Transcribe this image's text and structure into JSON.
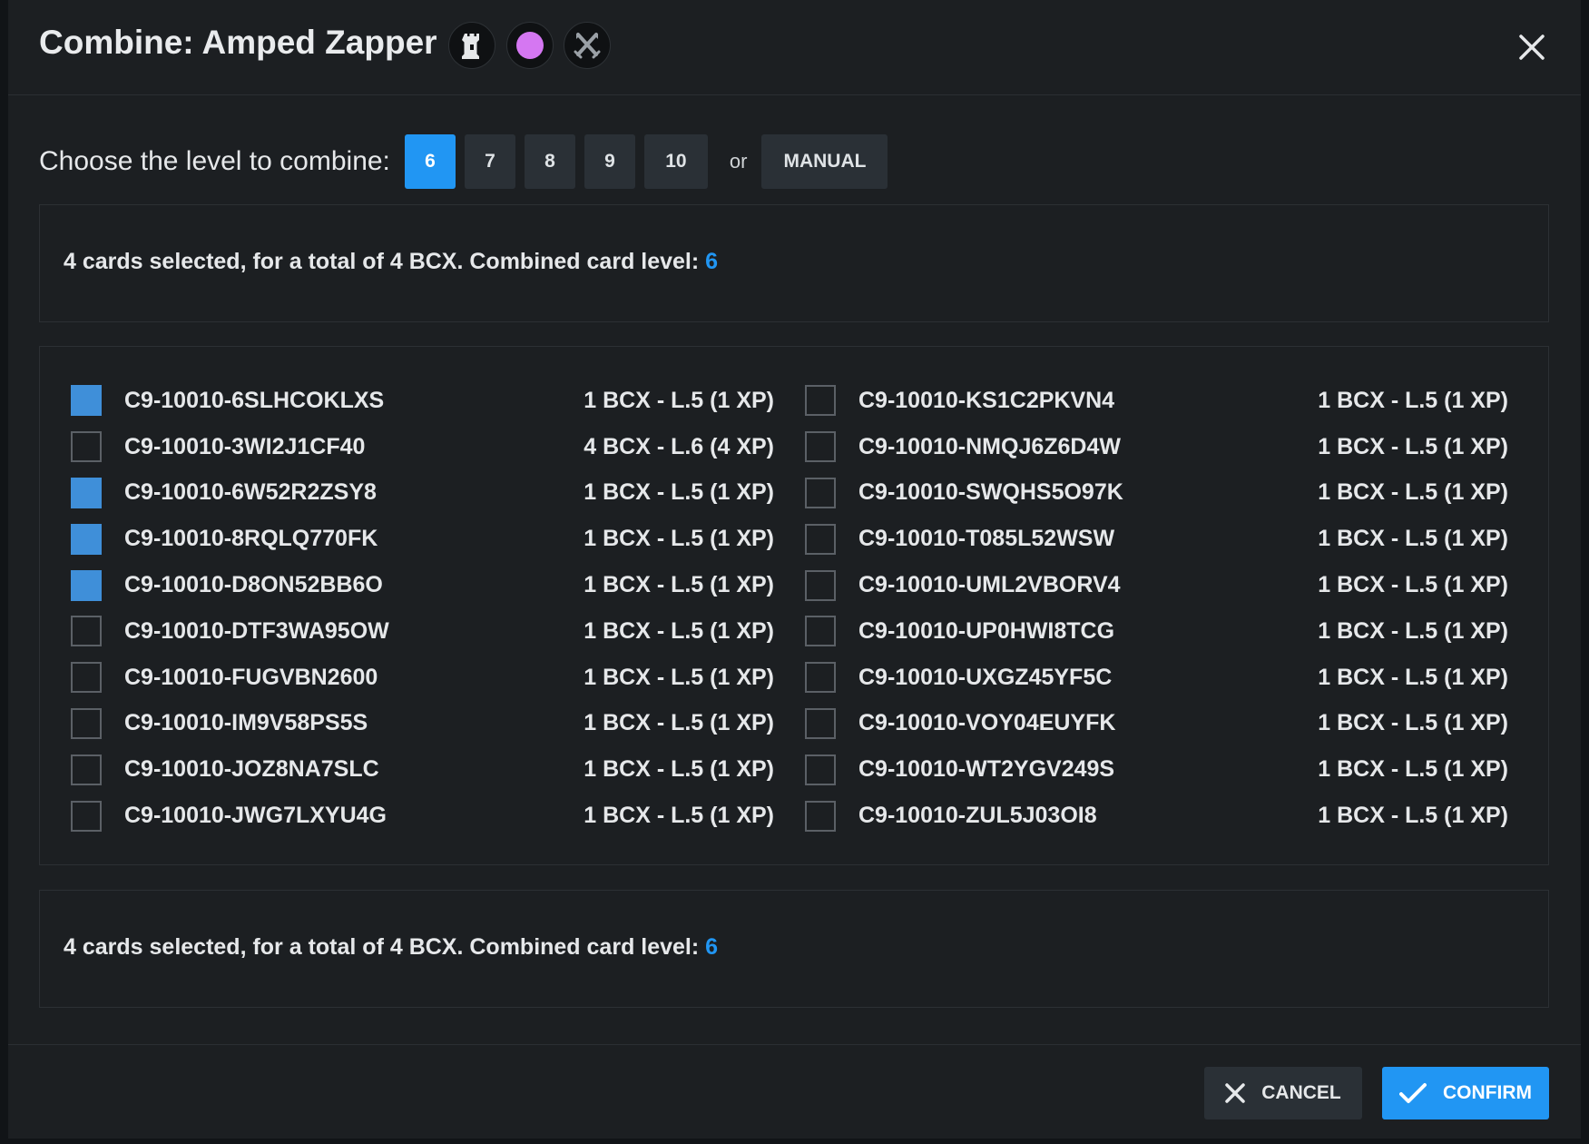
{
  "dialog": {
    "title": "Combine: Amped Zapper",
    "header_icons": [
      "tower-icon",
      "purple-circle-icon",
      "crossed-swords-icon"
    ],
    "close_icon": "close-icon"
  },
  "level_selector": {
    "prompt": "Choose the level to combine:",
    "levels": [
      "6",
      "7",
      "8",
      "9",
      "10"
    ],
    "selected": "6",
    "or_text": "or",
    "manual_label": "MANUAL"
  },
  "summary": {
    "text": "4 cards selected, for a total of 4 BCX. Combined card level:",
    "level": "6"
  },
  "cards": {
    "left": [
      {
        "id": "C9-10010-6SLHCOKLXS",
        "value": "1 BCX - L.5 (1 XP)",
        "checked": true
      },
      {
        "id": "C9-10010-3WI2J1CF40",
        "value": "4 BCX - L.6 (4 XP)",
        "checked": false
      },
      {
        "id": "C9-10010-6W52R2ZSY8",
        "value": "1 BCX - L.5 (1 XP)",
        "checked": true
      },
      {
        "id": "C9-10010-8RQLQ770FK",
        "value": "1 BCX - L.5 (1 XP)",
        "checked": true
      },
      {
        "id": "C9-10010-D8ON52BB6O",
        "value": "1 BCX - L.5 (1 XP)",
        "checked": true
      },
      {
        "id": "C9-10010-DTF3WA95OW",
        "value": "1 BCX - L.5 (1 XP)",
        "checked": false
      },
      {
        "id": "C9-10010-FUGVBN2600",
        "value": "1 BCX - L.5 (1 XP)",
        "checked": false
      },
      {
        "id": "C9-10010-IM9V58PS5S",
        "value": "1 BCX - L.5 (1 XP)",
        "checked": false
      },
      {
        "id": "C9-10010-JOZ8NA7SLC",
        "value": "1 BCX - L.5 (1 XP)",
        "checked": false
      },
      {
        "id": "C9-10010-JWG7LXYU4G",
        "value": "1 BCX - L.5 (1 XP)",
        "checked": false
      }
    ],
    "right": [
      {
        "id": "C9-10010-KS1C2PKVN4",
        "value": "1 BCX - L.5 (1 XP)",
        "checked": false
      },
      {
        "id": "C9-10010-NMQJ6Z6D4W",
        "value": "1 BCX - L.5 (1 XP)",
        "checked": false
      },
      {
        "id": "C9-10010-SWQHS5O97K",
        "value": "1 BCX - L.5 (1 XP)",
        "checked": false
      },
      {
        "id": "C9-10010-T085L52WSW",
        "value": "1 BCX - L.5 (1 XP)",
        "checked": false
      },
      {
        "id": "C9-10010-UML2VBORV4",
        "value": "1 BCX - L.5 (1 XP)",
        "checked": false
      },
      {
        "id": "C9-10010-UP0HWI8TCG",
        "value": "1 BCX - L.5 (1 XP)",
        "checked": false
      },
      {
        "id": "C9-10010-UXGZ45YF5C",
        "value": "1 BCX - L.5 (1 XP)",
        "checked": false
      },
      {
        "id": "C9-10010-VOY04EUYFK",
        "value": "1 BCX - L.5 (1 XP)",
        "checked": false
      },
      {
        "id": "C9-10010-WT2YGV249S",
        "value": "1 BCX - L.5 (1 XP)",
        "checked": false
      },
      {
        "id": "C9-10010-ZUL5J03OI8",
        "value": "1 BCX - L.5 (1 XP)",
        "checked": false
      }
    ]
  },
  "footer": {
    "cancel_label": "CANCEL",
    "cancel_icon": "close-icon",
    "confirm_label": "CONFIRM",
    "confirm_icon": "checkmark-icon"
  },
  "colors": {
    "accent": "#2196f3",
    "checked_box": "#3f8fd9",
    "modal_bg": "#1c1f22",
    "button_bg": "#2a3036"
  }
}
